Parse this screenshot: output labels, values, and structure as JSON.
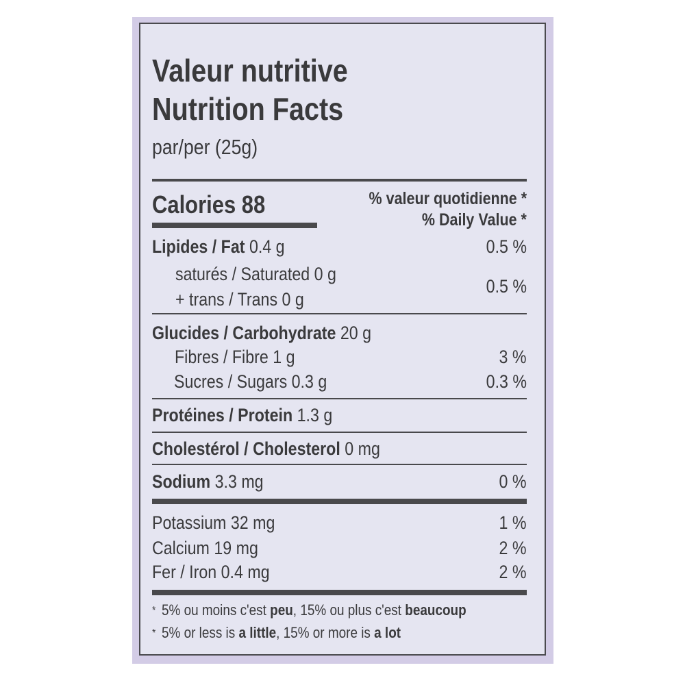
{
  "header": {
    "title_fr": "Valeur nutritive",
    "title_en": "Nutrition Facts",
    "serving": "par/per (25g)"
  },
  "calories": {
    "label": "Calories 88",
    "dv_header_fr": "% valeur quotidienne *",
    "dv_header_en": "% Daily Value *"
  },
  "nutrients": {
    "fat": {
      "label": "Lipides / Fat",
      "amount": "0.4 g",
      "dv": "0.5 %"
    },
    "saturated": {
      "label": "saturés / Saturated 0 g"
    },
    "trans": {
      "label": "+ trans / Trans 0 g"
    },
    "sat_trans_dv": "0.5 %",
    "carb": {
      "label": "Glucides / Carbohydrate",
      "amount": "20 g"
    },
    "fibre": {
      "label": "Fibres / Fibre 1 g",
      "dv": "3 %"
    },
    "sugars": {
      "label": "Sucres / Sugars 0.3 g",
      "dv": "0.3 %"
    },
    "protein": {
      "label": "Protéines / Protein",
      "amount": "1.3 g"
    },
    "cholesterol": {
      "label": "Cholestérol / Cholesterol",
      "amount": "0 mg"
    },
    "sodium": {
      "label": "Sodium",
      "amount": "3.3 mg",
      "dv": "0 %"
    },
    "potassium": {
      "label": "Potassium 32 mg",
      "dv": "1 %"
    },
    "calcium": {
      "label": "Calcium 19 mg",
      "dv": "2 %"
    },
    "iron": {
      "label": "Fer / Iron 0.4 mg",
      "dv": "2 %"
    }
  },
  "footnote": {
    "star": "*",
    "fr": {
      "a": "5% ou moins c'est ",
      "b": "peu",
      "c": ", 15% ou plus c'est ",
      "d": "beaucoup"
    },
    "en": {
      "a": "5% or less is ",
      "b": "a little",
      "c": ", 15% or more is ",
      "d": "a lot"
    }
  },
  "colors": {
    "panel": "#d3cce6",
    "label_bg": "#e5e5f1",
    "ink": "#3a3a3c"
  }
}
